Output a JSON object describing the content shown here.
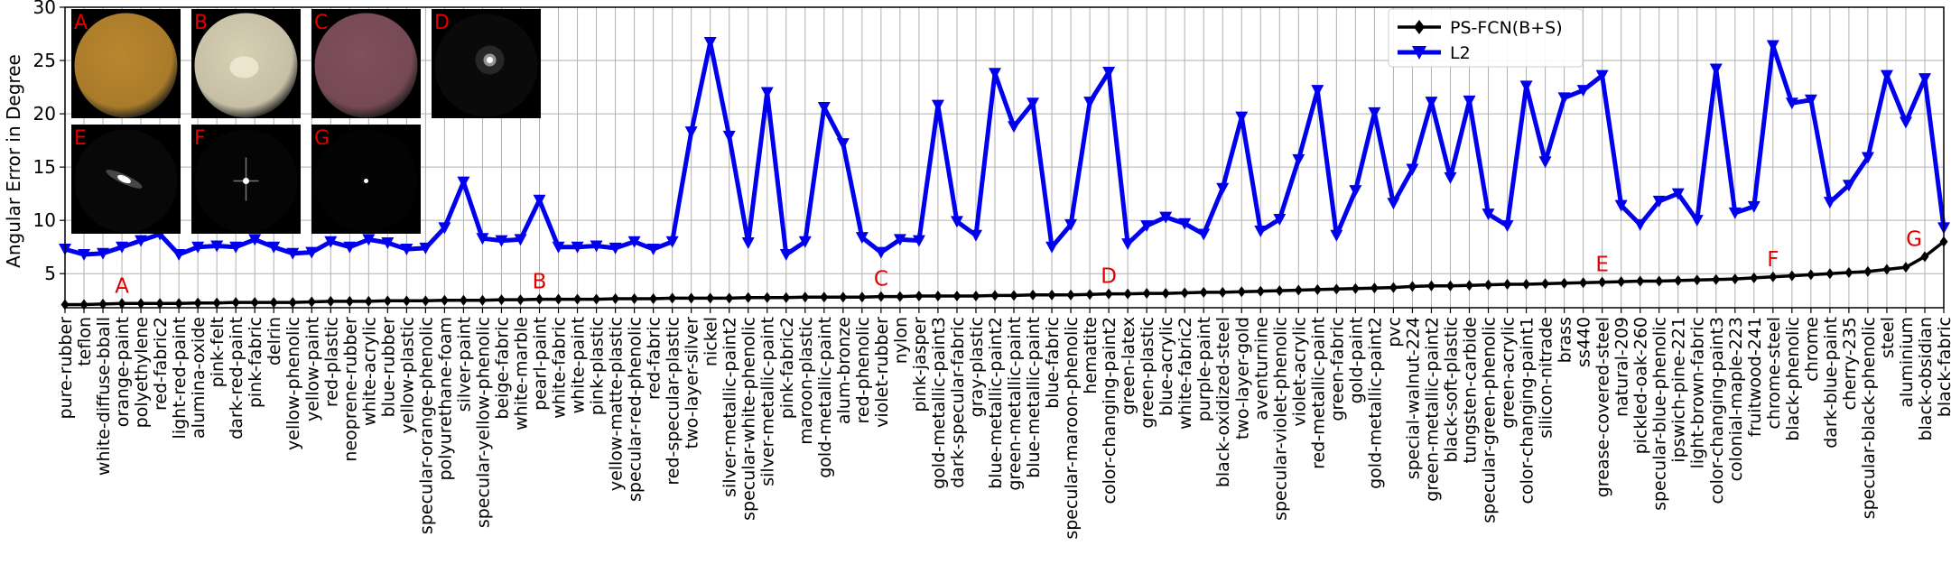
{
  "chart_data": {
    "type": "line",
    "ylabel": "Angular Error in Degree",
    "ylim": [
      1.8,
      30
    ],
    "yticks": [
      5,
      10,
      15,
      20,
      25,
      30
    ],
    "grid": true,
    "legend_position": "top-center",
    "categories": [
      "pure-rubber",
      "teflon",
      "white-diffuse-bball",
      "orange-paint",
      "polyethylene",
      "red-fabric2",
      "light-red-paint",
      "alumina-oxide",
      "pink-felt",
      "dark-red-paint",
      "pink-fabric",
      "delrin",
      "yellow-phenolic",
      "yellow-paint",
      "red-plastic",
      "neoprene-rubber",
      "white-acrylic",
      "blue-rubber",
      "yellow-plastic",
      "specular-orange-phenolic",
      "polyurethane-foam",
      "silver-paint",
      "specular-yellow-phenolic",
      "beige-fabric",
      "white-marble",
      "pearl-paint",
      "white-fabric",
      "white-paint",
      "pink-plastic",
      "yellow-matte-plastic",
      "specular-red-phenolic",
      "red-fabric",
      "red-specular-plastic",
      "two-layer-silver",
      "nickel",
      "silver-metallic-paint2",
      "specular-white-phenolic",
      "silver-metallic-paint",
      "pink-fabric2",
      "maroon-plastic",
      "gold-metallic-paint",
      "alum-bronze",
      "red-phenolic",
      "violet-rubber",
      "nylon",
      "pink-jasper",
      "gold-metallic-paint3",
      "dark-specular-fabric",
      "gray-plastic",
      "blue-metallic-paint2",
      "green-metallic-paint",
      "blue-metallic-paint",
      "blue-fabric",
      "specular-maroon-phenolic",
      "hematite",
      "color-changing-paint2",
      "green-latex",
      "green-plastic",
      "blue-acrylic",
      "white-fabric2",
      "purple-paint",
      "black-oxidized-steel",
      "two-layer-gold",
      "aventurnine",
      "specular-violet-phenolic",
      "violet-acrylic",
      "red-metallic-paint",
      "green-fabric",
      "gold-paint",
      "gold-metallic-paint2",
      "pvc",
      "special-walnut-224",
      "green-metallic-paint2",
      "black-soft-plastic",
      "tungsten-carbide",
      "specular-green-phenolic",
      "green-acrylic",
      "color-changing-paint1",
      "silicon-nitrade",
      "brass",
      "ss440",
      "grease-covered-steel",
      "natural-209",
      "pickled-oak-260",
      "specular-blue-phenolic",
      "ipswich-pine-221",
      "light-brown-fabric",
      "color-changing-paint3",
      "colonial-maple-223",
      "fruitwood-241",
      "chrome-steel",
      "black-phenolic",
      "chrome",
      "dark-blue-paint",
      "cherry-235",
      "specular-black-phenolic",
      "steel",
      "aluminium",
      "black-obsidian",
      "black-fabric"
    ],
    "series": [
      {
        "name": "PS-FCN(B+S)",
        "color": "#000000",
        "marker": "diamond",
        "values": [
          2.1,
          2.1,
          2.15,
          2.2,
          2.2,
          2.2,
          2.2,
          2.25,
          2.25,
          2.3,
          2.3,
          2.3,
          2.3,
          2.35,
          2.4,
          2.4,
          2.4,
          2.45,
          2.45,
          2.45,
          2.5,
          2.5,
          2.5,
          2.55,
          2.55,
          2.6,
          2.6,
          2.6,
          2.6,
          2.65,
          2.65,
          2.65,
          2.7,
          2.7,
          2.7,
          2.7,
          2.75,
          2.75,
          2.75,
          2.8,
          2.8,
          2.8,
          2.8,
          2.85,
          2.85,
          2.9,
          2.9,
          2.9,
          2.9,
          2.95,
          2.95,
          3.0,
          3.0,
          3.0,
          3.05,
          3.1,
          3.1,
          3.15,
          3.15,
          3.2,
          3.25,
          3.25,
          3.3,
          3.35,
          3.4,
          3.45,
          3.5,
          3.55,
          3.6,
          3.65,
          3.7,
          3.8,
          3.85,
          3.85,
          3.9,
          3.95,
          4.0,
          4.0,
          4.05,
          4.1,
          4.15,
          4.2,
          4.25,
          4.3,
          4.3,
          4.35,
          4.4,
          4.45,
          4.5,
          4.6,
          4.7,
          4.8,
          4.9,
          5.0,
          5.1,
          5.2,
          5.4,
          5.6,
          6.6,
          8.0
        ]
      },
      {
        "name": "L2",
        "color": "#0000ee",
        "marker": "triangle-down",
        "values": [
          7.3,
          6.8,
          6.9,
          7.5,
          8.1,
          8.7,
          6.8,
          7.5,
          7.6,
          7.5,
          8.2,
          7.5,
          6.9,
          7.0,
          8.0,
          7.5,
          8.2,
          7.9,
          7.3,
          7.4,
          9.3,
          13.6,
          8.3,
          8.1,
          8.2,
          11.9,
          7.5,
          7.5,
          7.6,
          7.4,
          8.0,
          7.3,
          8.0,
          18.3,
          26.7,
          17.9,
          7.9,
          22.0,
          6.8,
          8.0,
          20.6,
          17.2,
          8.4,
          7.0,
          8.2,
          8.1,
          20.8,
          9.9,
          8.6,
          23.8,
          18.8,
          21.0,
          7.5,
          9.6,
          21.1,
          23.9,
          7.8,
          9.5,
          10.3,
          9.7,
          8.7,
          13.0,
          19.7,
          9.0,
          10.1,
          15.7,
          22.2,
          8.6,
          12.8,
          20.1,
          11.6,
          14.8,
          21.1,
          14.0,
          21.2,
          10.6,
          9.5,
          22.6,
          15.5,
          21.5,
          22.2,
          23.6,
          11.4,
          9.6,
          11.8,
          12.5,
          10.0,
          24.2,
          10.7,
          11.3,
          26.4,
          21.0,
          21.3,
          11.7,
          13.3,
          15.9,
          23.6,
          19.2,
          23.3,
          9.3
        ]
      }
    ],
    "annotations": [
      {
        "label": "A",
        "category": "orange-paint"
      },
      {
        "label": "B",
        "category": "pearl-paint"
      },
      {
        "label": "C",
        "category": "violet-rubber"
      },
      {
        "label": "D",
        "category": "color-changing-paint2"
      },
      {
        "label": "E",
        "category": "grease-covered-steel"
      },
      {
        "label": "F",
        "category": "chrome-steel"
      },
      {
        "label": "G",
        "category": "black-obsidian"
      }
    ],
    "insets": [
      {
        "label": "A",
        "material": "orange-paint",
        "color": "#b8862e",
        "highlight": "none"
      },
      {
        "label": "B",
        "material": "pearl-paint",
        "color": "#d8d0b4",
        "highlight": "none"
      },
      {
        "label": "C",
        "material": "violet-rubber",
        "color": "#80505c",
        "highlight": "none"
      },
      {
        "label": "D",
        "material": "color-changing-paint2",
        "color": "#0a0a0a",
        "highlight": "soft"
      },
      {
        "label": "E",
        "material": "grease-covered-steel",
        "color": "#080808",
        "highlight": "streak"
      },
      {
        "label": "F",
        "material": "chrome-steel",
        "color": "#050505",
        "highlight": "cross"
      },
      {
        "label": "G",
        "material": "black-obsidian",
        "color": "#030303",
        "highlight": "dot"
      }
    ]
  }
}
